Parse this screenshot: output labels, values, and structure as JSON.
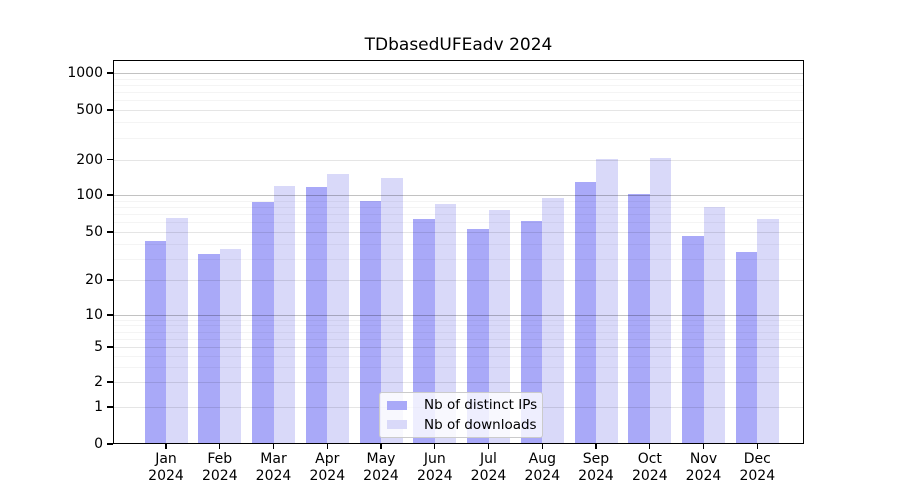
{
  "title": "TDbasedUFEadv 2024",
  "chart_data": {
    "type": "bar",
    "title": "TDbasedUFEadv 2024",
    "categories": [
      "Jan",
      "Feb",
      "Mar",
      "Apr",
      "May",
      "Jun",
      "Jul",
      "Aug",
      "Sep",
      "Oct",
      "Nov",
      "Dec"
    ],
    "x_tick_second_line": "2024",
    "series": [
      {
        "name": "Nb of distinct IPs",
        "color": "#a9a9f8",
        "values": [
          42,
          33,
          88,
          117,
          90,
          64,
          53,
          62,
          128,
          102,
          46,
          34
        ]
      },
      {
        "name": "Nb of downloads",
        "color": "#d9d9f9",
        "values": [
          65,
          36,
          120,
          152,
          140,
          84,
          75,
          95,
          202,
          204,
          80,
          64
        ]
      }
    ],
    "yticks": [
      0,
      1,
      2,
      5,
      10,
      20,
      50,
      100,
      200,
      500,
      1000
    ],
    "yscale": "log-like with 0 baseline",
    "ylim": [
      0,
      1400
    ],
    "grid": true,
    "legend_position": "lower-center",
    "axis_color": "#000000",
    "grid_major_color": "#c2c2c2",
    "grid_minor_color": "#ededed"
  }
}
